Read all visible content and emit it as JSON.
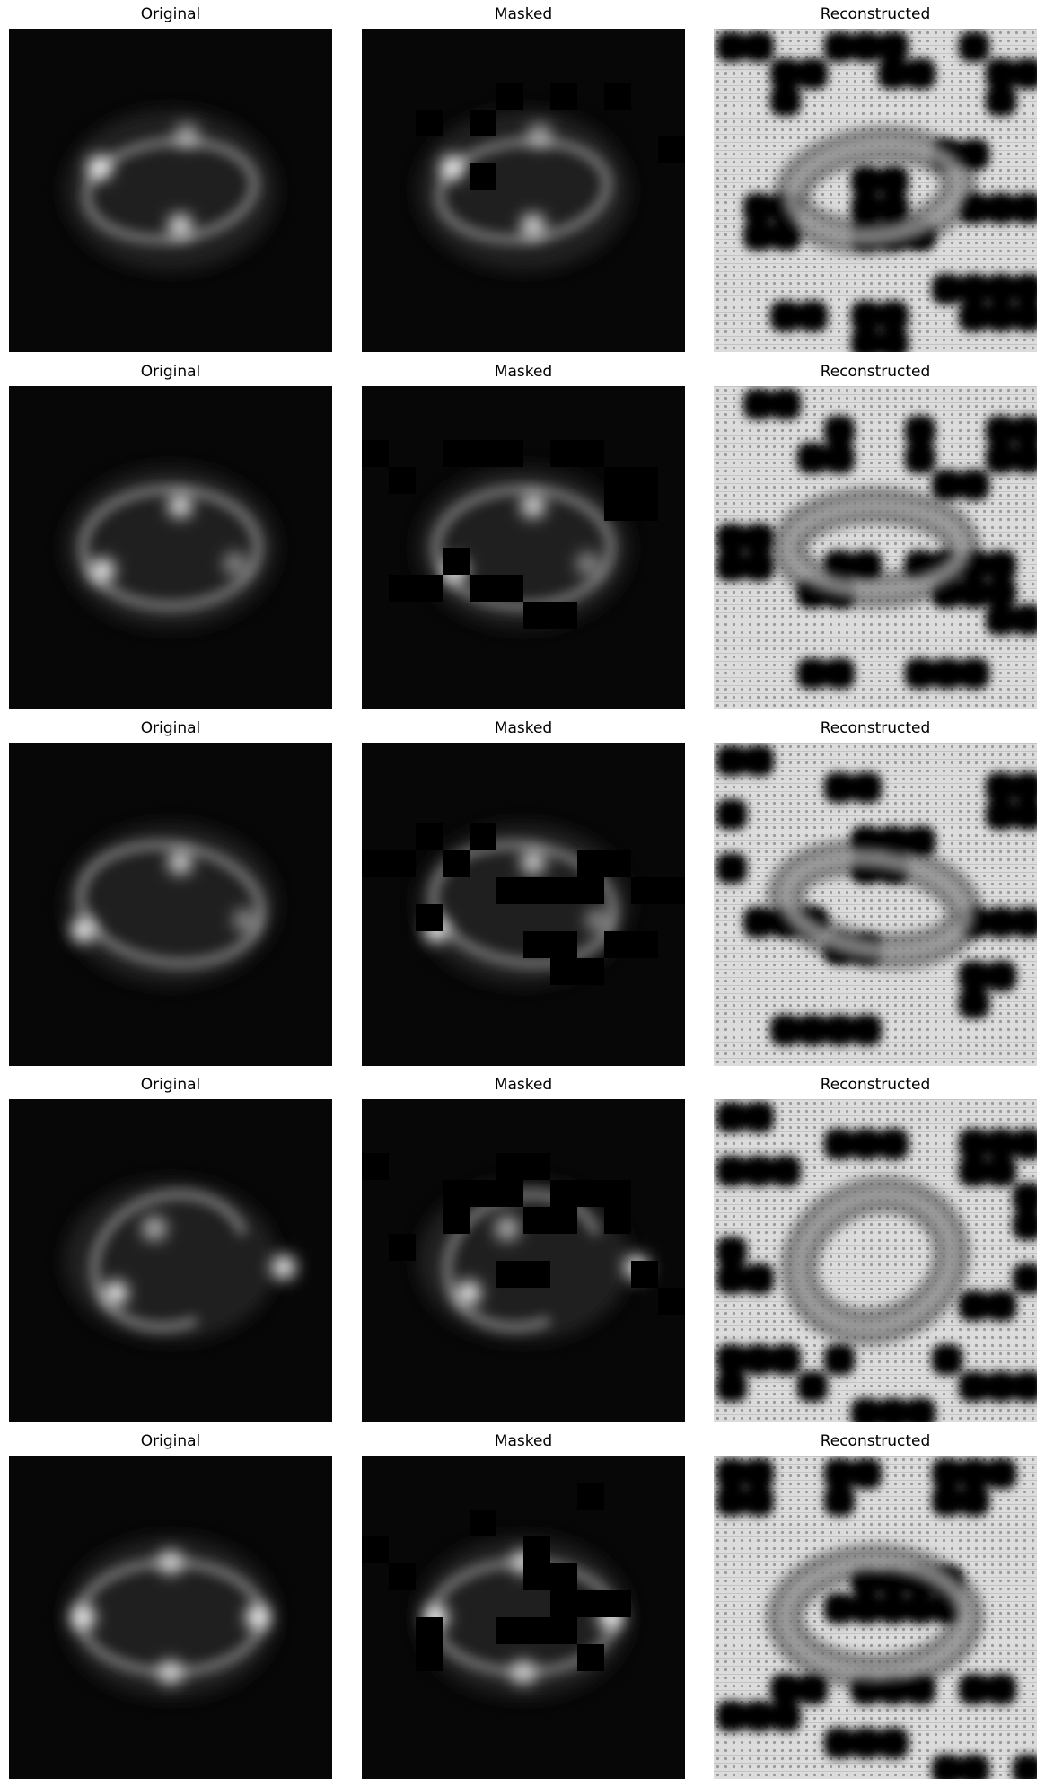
{
  "panels": [
    {
      "row": 0,
      "col": 0,
      "title": "Original",
      "kind": "original",
      "ring": {
        "a": 0.26,
        "b": 0.15,
        "rot": -6,
        "knots": [
          [
            0.28,
            0.43,
            1.0
          ],
          [
            0.53,
            0.61,
            0.9
          ],
          [
            0.55,
            0.33,
            0.6
          ]
        ]
      },
      "masks": []
    },
    {
      "row": 0,
      "col": 1,
      "title": "Masked",
      "kind": "masked",
      "ring": {
        "a": 0.26,
        "b": 0.15,
        "rot": -6,
        "knots": [
          [
            0.28,
            0.43,
            1.0
          ],
          [
            0.53,
            0.61,
            0.9
          ],
          [
            0.55,
            0.33,
            0.6
          ]
        ]
      },
      "masks": [
        [
          5,
          2
        ],
        [
          7,
          2
        ],
        [
          9,
          2
        ],
        [
          2,
          3
        ],
        [
          11,
          4
        ],
        [
          4,
          5
        ],
        [
          4,
          3
        ]
      ]
    },
    {
      "row": 0,
      "col": 2,
      "title": "Reconstructed",
      "kind": "reconstructed",
      "ring": {
        "a": 0.26,
        "b": 0.14,
        "rot": -6
      },
      "masks": [
        [
          0,
          0
        ],
        [
          1,
          0
        ],
        [
          4,
          0
        ],
        [
          5,
          0
        ],
        [
          6,
          0
        ],
        [
          9,
          0
        ],
        [
          2,
          1
        ],
        [
          3,
          1
        ],
        [
          6,
          1
        ],
        [
          7,
          1
        ],
        [
          10,
          1
        ],
        [
          11,
          1
        ],
        [
          2,
          2
        ],
        [
          10,
          2
        ],
        [
          8,
          4
        ],
        [
          9,
          4
        ],
        [
          5,
          5
        ],
        [
          6,
          5
        ],
        [
          1,
          6
        ],
        [
          2,
          6
        ],
        [
          5,
          6
        ],
        [
          6,
          6
        ],
        [
          9,
          6
        ],
        [
          10,
          6
        ],
        [
          11,
          6
        ],
        [
          1,
          7
        ],
        [
          2,
          7
        ],
        [
          5,
          7
        ],
        [
          6,
          7
        ],
        [
          7,
          7
        ],
        [
          8,
          9
        ],
        [
          9,
          9
        ],
        [
          10,
          9
        ],
        [
          11,
          9
        ],
        [
          2,
          10
        ],
        [
          3,
          10
        ],
        [
          5,
          10
        ],
        [
          6,
          10
        ],
        [
          9,
          10
        ],
        [
          10,
          10
        ],
        [
          11,
          10
        ],
        [
          5,
          11
        ],
        [
          6,
          11
        ]
      ]
    },
    {
      "row": 1,
      "col": 0,
      "title": "Original",
      "kind": "original",
      "ring": {
        "a": 0.27,
        "b": 0.18,
        "rot": 0,
        "knots": [
          [
            0.29,
            0.57,
            1.0
          ],
          [
            0.53,
            0.37,
            0.9
          ],
          [
            0.7,
            0.55,
            0.5
          ]
        ]
      },
      "masks": []
    },
    {
      "row": 1,
      "col": 1,
      "title": "Masked",
      "kind": "masked",
      "ring": {
        "a": 0.27,
        "b": 0.18,
        "rot": 0,
        "knots": [
          [
            0.29,
            0.57,
            1.0
          ],
          [
            0.53,
            0.37,
            0.9
          ],
          [
            0.7,
            0.55,
            0.5
          ]
        ]
      },
      "masks": [
        [
          3,
          2
        ],
        [
          4,
          2
        ],
        [
          5,
          2
        ],
        [
          7,
          2
        ],
        [
          8,
          2
        ],
        [
          9,
          3
        ],
        [
          10,
          3
        ],
        [
          3,
          6
        ],
        [
          1,
          7
        ],
        [
          2,
          7
        ],
        [
          4,
          7
        ],
        [
          5,
          7
        ],
        [
          6,
          8
        ],
        [
          7,
          8
        ],
        [
          9,
          4
        ],
        [
          10,
          4
        ],
        [
          0,
          2
        ],
        [
          1,
          3
        ]
      ]
    },
    {
      "row": 1,
      "col": 2,
      "title": "Reconstructed",
      "kind": "reconstructed",
      "ring": {
        "a": 0.27,
        "b": 0.13,
        "rot": 0
      },
      "masks": [
        [
          1,
          0
        ],
        [
          2,
          0
        ],
        [
          4,
          1
        ],
        [
          7,
          1
        ],
        [
          10,
          1
        ],
        [
          11,
          1
        ],
        [
          3,
          2
        ],
        [
          4,
          2
        ],
        [
          7,
          2
        ],
        [
          10,
          2
        ],
        [
          11,
          2
        ],
        [
          8,
          3
        ],
        [
          9,
          3
        ],
        [
          0,
          5
        ],
        [
          1,
          5
        ],
        [
          4,
          6
        ],
        [
          5,
          6
        ],
        [
          7,
          6
        ],
        [
          8,
          6
        ],
        [
          9,
          6
        ],
        [
          10,
          6
        ],
        [
          3,
          7
        ],
        [
          4,
          7
        ],
        [
          8,
          7
        ],
        [
          9,
          7
        ],
        [
          10,
          7
        ],
        [
          0,
          6
        ],
        [
          1,
          6
        ],
        [
          3,
          10
        ],
        [
          4,
          10
        ],
        [
          7,
          10
        ],
        [
          8,
          10
        ],
        [
          9,
          10
        ],
        [
          10,
          8
        ],
        [
          11,
          8
        ]
      ]
    },
    {
      "row": 2,
      "col": 0,
      "title": "Original",
      "kind": "original",
      "ring": {
        "a": 0.28,
        "b": 0.18,
        "rot": 8,
        "knots": [
          [
            0.23,
            0.58,
            1.0
          ],
          [
            0.53,
            0.37,
            0.85
          ],
          [
            0.73,
            0.55,
            0.5
          ]
        ]
      },
      "masks": []
    },
    {
      "row": 2,
      "col": 1,
      "title": "Masked",
      "kind": "masked",
      "ring": {
        "a": 0.28,
        "b": 0.18,
        "rot": 8,
        "knots": [
          [
            0.23,
            0.58,
            1.0
          ],
          [
            0.53,
            0.37,
            0.85
          ],
          [
            0.73,
            0.55,
            0.5
          ]
        ]
      },
      "masks": [
        [
          0,
          4
        ],
        [
          1,
          4
        ],
        [
          5,
          5
        ],
        [
          6,
          5
        ],
        [
          7,
          5
        ],
        [
          8,
          4
        ],
        [
          9,
          4
        ],
        [
          8,
          5
        ],
        [
          10,
          5
        ],
        [
          11,
          5
        ],
        [
          2,
          6
        ],
        [
          6,
          7
        ],
        [
          7,
          7
        ],
        [
          9,
          7
        ],
        [
          10,
          7
        ],
        [
          2,
          3
        ],
        [
          4,
          3
        ],
        [
          7,
          8
        ],
        [
          8,
          8
        ],
        [
          3,
          4
        ]
      ]
    },
    {
      "row": 2,
      "col": 2,
      "title": "Reconstructed",
      "kind": "reconstructed",
      "ring": {
        "a": 0.28,
        "b": 0.14,
        "rot": 8
      },
      "masks": [
        [
          0,
          0
        ],
        [
          1,
          0
        ],
        [
          4,
          1
        ],
        [
          5,
          1
        ],
        [
          10,
          1
        ],
        [
          11,
          1
        ],
        [
          0,
          2
        ],
        [
          10,
          2
        ],
        [
          11,
          2
        ],
        [
          5,
          3
        ],
        [
          6,
          3
        ],
        [
          7,
          3
        ],
        [
          5,
          4
        ],
        [
          6,
          4
        ],
        [
          1,
          6
        ],
        [
          2,
          6
        ],
        [
          3,
          6
        ],
        [
          9,
          6
        ],
        [
          10,
          6
        ],
        [
          11,
          6
        ],
        [
          0,
          4
        ],
        [
          4,
          7
        ],
        [
          5,
          7
        ],
        [
          9,
          8
        ],
        [
          10,
          8
        ],
        [
          2,
          10
        ],
        [
          3,
          10
        ],
        [
          4,
          10
        ],
        [
          5,
          10
        ],
        [
          9,
          9
        ]
      ]
    },
    {
      "row": 3,
      "col": 0,
      "title": "Original",
      "kind": "original",
      "ring": {
        "a": 0.24,
        "b": 0.2,
        "rot": -20,
        "arc": [
          120,
          260
        ],
        "knots": [
          [
            0.33,
            0.6,
            1.0
          ],
          [
            0.45,
            0.4,
            0.7
          ],
          [
            0.85,
            0.52,
            1.0
          ]
        ]
      },
      "masks": []
    },
    {
      "row": 3,
      "col": 1,
      "title": "Masked",
      "kind": "masked",
      "ring": {
        "a": 0.24,
        "b": 0.2,
        "rot": -20,
        "arc": [
          120,
          260
        ],
        "knots": [
          [
            0.33,
            0.6,
            1.0
          ],
          [
            0.45,
            0.4,
            0.7
          ],
          [
            0.85,
            0.52,
            1.0
          ]
        ]
      },
      "masks": [
        [
          3,
          3
        ],
        [
          4,
          3
        ],
        [
          3,
          4
        ],
        [
          5,
          3
        ],
        [
          6,
          4
        ],
        [
          7,
          4
        ],
        [
          7,
          3
        ],
        [
          8,
          3
        ],
        [
          5,
          2
        ],
        [
          6,
          2
        ],
        [
          9,
          3
        ],
        [
          9,
          4
        ],
        [
          10,
          6
        ],
        [
          0,
          2
        ],
        [
          1,
          5
        ],
        [
          11,
          7
        ],
        [
          5,
          6
        ],
        [
          6,
          6
        ]
      ]
    },
    {
      "row": 3,
      "col": 2,
      "title": "Reconstructed",
      "kind": "reconstructed",
      "ring": {
        "a": 0.24,
        "b": 0.2,
        "rot": -20,
        "arc": [
          120,
          260
        ]
      },
      "masks": [
        [
          0,
          0
        ],
        [
          1,
          0
        ],
        [
          4,
          1
        ],
        [
          5,
          1
        ],
        [
          6,
          1
        ],
        [
          9,
          1
        ],
        [
          10,
          1
        ],
        [
          11,
          1
        ],
        [
          0,
          2
        ],
        [
          1,
          2
        ],
        [
          2,
          2
        ],
        [
          9,
          2
        ],
        [
          10,
          2
        ],
        [
          11,
          3
        ],
        [
          11,
          4
        ],
        [
          0,
          5
        ],
        [
          0,
          6
        ],
        [
          1,
          6
        ],
        [
          11,
          6
        ],
        [
          0,
          9
        ],
        [
          1,
          9
        ],
        [
          2,
          9
        ],
        [
          9,
          7
        ],
        [
          10,
          7
        ],
        [
          8,
          9
        ],
        [
          9,
          10
        ],
        [
          10,
          10
        ],
        [
          11,
          10
        ],
        [
          5,
          11
        ],
        [
          6,
          11
        ],
        [
          7,
          11
        ],
        [
          4,
          9
        ],
        [
          3,
          10
        ],
        [
          0,
          10
        ]
      ]
    },
    {
      "row": 4,
      "col": 0,
      "title": "Original",
      "kind": "original",
      "ring": {
        "a": 0.28,
        "b": 0.17,
        "rot": 0,
        "knots": [
          [
            0.23,
            0.5,
            1.0
          ],
          [
            0.77,
            0.5,
            1.0
          ],
          [
            0.5,
            0.33,
            0.8
          ],
          [
            0.5,
            0.67,
            0.8
          ]
        ]
      },
      "masks": []
    },
    {
      "row": 4,
      "col": 1,
      "title": "Masked",
      "kind": "masked",
      "ring": {
        "a": 0.28,
        "b": 0.17,
        "rot": 0,
        "knots": [
          [
            0.23,
            0.5,
            1.0
          ],
          [
            0.77,
            0.5,
            1.0
          ],
          [
            0.5,
            0.33,
            0.8
          ],
          [
            0.5,
            0.67,
            0.8
          ]
        ]
      },
      "masks": [
        [
          6,
          3
        ],
        [
          6,
          4
        ],
        [
          7,
          4
        ],
        [
          7,
          5
        ],
        [
          8,
          5
        ],
        [
          7,
          6
        ],
        [
          5,
          6
        ],
        [
          6,
          6
        ],
        [
          2,
          6
        ],
        [
          2,
          7
        ],
        [
          9,
          5
        ],
        [
          8,
          7
        ],
        [
          0,
          3
        ],
        [
          1,
          4
        ],
        [
          8,
          1
        ],
        [
          4,
          2
        ]
      ]
    },
    {
      "row": 4,
      "col": 2,
      "title": "Reconstructed",
      "kind": "reconstructed",
      "ring": {
        "a": 0.28,
        "b": 0.17,
        "rot": 0
      },
      "masks": [
        [
          0,
          0
        ],
        [
          1,
          0
        ],
        [
          4,
          0
        ],
        [
          5,
          0
        ],
        [
          8,
          0
        ],
        [
          9,
          0
        ],
        [
          10,
          0
        ],
        [
          0,
          1
        ],
        [
          1,
          1
        ],
        [
          4,
          1
        ],
        [
          8,
          1
        ],
        [
          9,
          1
        ],
        [
          5,
          4
        ],
        [
          6,
          4
        ],
        [
          7,
          4
        ],
        [
          8,
          4
        ],
        [
          4,
          5
        ],
        [
          5,
          5
        ],
        [
          6,
          5
        ],
        [
          7,
          5
        ],
        [
          8,
          5
        ],
        [
          2,
          8
        ],
        [
          3,
          8
        ],
        [
          5,
          8
        ],
        [
          6,
          8
        ],
        [
          7,
          8
        ],
        [
          9,
          8
        ],
        [
          10,
          8
        ],
        [
          0,
          9
        ],
        [
          1,
          9
        ],
        [
          2,
          9
        ],
        [
          4,
          10
        ],
        [
          5,
          10
        ],
        [
          6,
          10
        ],
        [
          8,
          11
        ],
        [
          9,
          11
        ],
        [
          11,
          11
        ]
      ]
    }
  ]
}
